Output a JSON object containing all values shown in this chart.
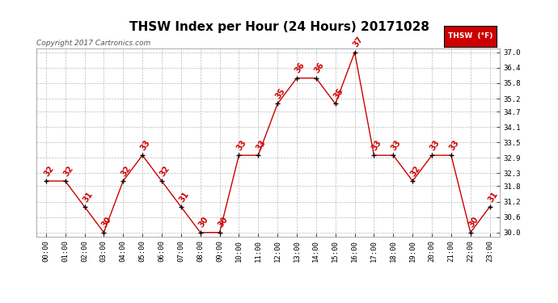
{
  "title": "THSW Index per Hour (24 Hours) 20171028",
  "copyright": "Copyright 2017 Cartronics.com",
  "legend_label": "THSW  (°F)",
  "hours": [
    0,
    1,
    2,
    3,
    4,
    5,
    6,
    7,
    8,
    9,
    10,
    11,
    12,
    13,
    14,
    15,
    16,
    17,
    18,
    19,
    20,
    21,
    22,
    23
  ],
  "values": [
    32,
    32,
    31,
    30,
    32,
    33,
    32,
    31,
    30,
    30,
    33,
    33,
    35,
    36,
    36,
    35,
    37,
    33,
    33,
    32,
    33,
    33,
    30,
    31
  ],
  "xlabels": [
    "00:00",
    "01:00",
    "02:00",
    "03:00",
    "04:00",
    "05:00",
    "06:00",
    "07:00",
    "08:00",
    "09:00",
    "10:00",
    "11:00",
    "12:00",
    "13:00",
    "14:00",
    "15:00",
    "16:00",
    "17:00",
    "18:00",
    "19:00",
    "20:00",
    "21:00",
    "22:00",
    "23:00"
  ],
  "ylim": [
    29.85,
    37.15
  ],
  "yticks": [
    30.0,
    30.6,
    31.2,
    31.8,
    32.3,
    32.9,
    33.5,
    34.1,
    34.7,
    35.2,
    35.8,
    36.4,
    37.0
  ],
  "line_color": "#cc0000",
  "marker_color": "#000000",
  "label_color": "#cc0000",
  "background_color": "#ffffff",
  "grid_color": "#bbbbbb",
  "title_fontsize": 11,
  "copyright_fontsize": 6.5,
  "label_fontsize": 7,
  "tick_fontsize": 6.5,
  "legend_bg": "#cc0000",
  "legend_text_color": "#ffffff"
}
